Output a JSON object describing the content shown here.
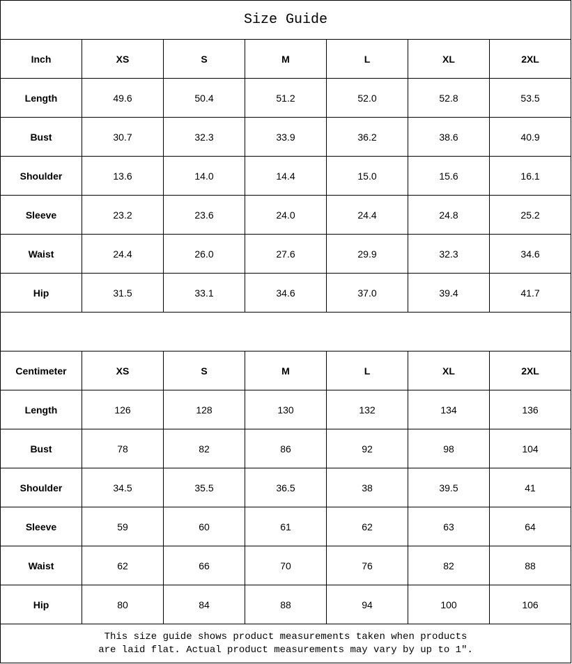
{
  "title": "Size Guide",
  "sizes": [
    "XS",
    "S",
    "M",
    "L",
    "XL",
    "2XL"
  ],
  "inch": {
    "unit_label": "Inch",
    "rows": [
      {
        "label": "Length",
        "values": [
          "49.6",
          "50.4",
          "51.2",
          "52.0",
          "52.8",
          "53.5"
        ]
      },
      {
        "label": "Bust",
        "values": [
          "30.7",
          "32.3",
          "33.9",
          "36.2",
          "38.6",
          "40.9"
        ]
      },
      {
        "label": "Shoulder",
        "values": [
          "13.6",
          "14.0",
          "14.4",
          "15.0",
          "15.6",
          "16.1"
        ]
      },
      {
        "label": "Sleeve",
        "values": [
          "23.2",
          "23.6",
          "24.0",
          "24.4",
          "24.8",
          "25.2"
        ]
      },
      {
        "label": "Waist",
        "values": [
          "24.4",
          "26.0",
          "27.6",
          "29.9",
          "32.3",
          "34.6"
        ]
      },
      {
        "label": "Hip",
        "values": [
          "31.5",
          "33.1",
          "34.6",
          "37.0",
          "39.4",
          "41.7"
        ]
      }
    ]
  },
  "centimeter": {
    "unit_label": "Centimeter",
    "rows": [
      {
        "label": "Length",
        "values": [
          "126",
          "128",
          "130",
          "132",
          "134",
          "136"
        ]
      },
      {
        "label": "Bust",
        "values": [
          "78",
          "82",
          "86",
          "92",
          "98",
          "104"
        ]
      },
      {
        "label": "Shoulder",
        "values": [
          "34.5",
          "35.5",
          "36.5",
          "38",
          "39.5",
          "41"
        ]
      },
      {
        "label": "Sleeve",
        "values": [
          "59",
          "60",
          "61",
          "62",
          "63",
          "64"
        ]
      },
      {
        "label": "Waist",
        "values": [
          "62",
          "66",
          "70",
          "76",
          "82",
          "88"
        ]
      },
      {
        "label": "Hip",
        "values": [
          "80",
          "84",
          "88",
          "94",
          "100",
          "106"
        ]
      }
    ]
  },
  "note": {
    "line1": "This size guide shows product measurements taken when products",
    "line2": "are laid flat. Actual product measurements may vary by up to 1″."
  }
}
